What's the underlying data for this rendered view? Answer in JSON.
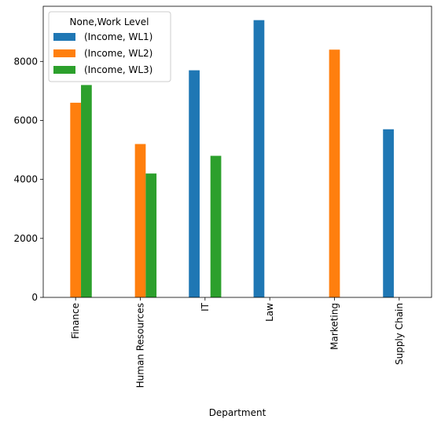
{
  "chart_data": {
    "type": "bar",
    "title": "",
    "xlabel": "Department",
    "ylabel": "",
    "categories": [
      "Finance",
      "Human Resources",
      "IT",
      "Law",
      "Marketing",
      "Supply Chain"
    ],
    "series": [
      {
        "name": "(Income, WL1)",
        "color": "#1f77b4",
        "values": [
          0,
          0,
          7700,
          9400,
          0,
          5700
        ]
      },
      {
        "name": "(Income, WL2)",
        "color": "#ff7f0e",
        "values": [
          6600,
          5200,
          0,
          0,
          8400,
          0
        ]
      },
      {
        "name": "(Income, WL3)",
        "color": "#2ca02c",
        "values": [
          7200,
          4200,
          4800,
          0,
          0,
          0
        ]
      }
    ],
    "ylim": [
      0,
      9870
    ],
    "yticks": [
      0,
      2000,
      4000,
      6000,
      8000
    ],
    "grid": false,
    "legend": {
      "title": "None,Work Level",
      "placement": "top-left"
    }
  }
}
